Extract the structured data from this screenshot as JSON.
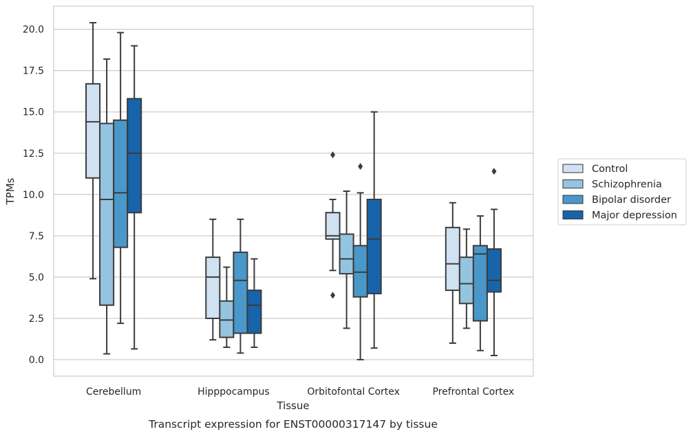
{
  "chart_data": {
    "type": "box",
    "xlabel": "Tissue",
    "ylabel": "TPMs",
    "caption": "Transcript expression for ENST00000317147 by tissue",
    "ylim": [
      -1.0,
      21.4
    ],
    "yticks": [
      "0.0",
      "2.5",
      "5.0",
      "7.5",
      "10.0",
      "12.5",
      "15.0",
      "17.5",
      "20.0"
    ],
    "grid": true,
    "legend_position": "right",
    "categories": [
      "Cerebellum",
      "Hipppocampus",
      "Orbitofontal Cortex",
      "Prefrontal Cortex"
    ],
    "series": [
      {
        "name": "Control",
        "color": "#d0e1f2",
        "boxes": [
          {
            "whislo": 4.9,
            "q1": 11.0,
            "med": 14.4,
            "q3": 16.7,
            "whishi": 20.4,
            "fliers": []
          },
          {
            "whislo": 1.2,
            "q1": 2.5,
            "med": 5.0,
            "q3": 6.2,
            "whishi": 8.5,
            "fliers": []
          },
          {
            "whislo": 5.4,
            "q1": 7.3,
            "med": 7.5,
            "q3": 8.9,
            "whishi": 9.7,
            "fliers": [
              12.4,
              3.9
            ]
          },
          {
            "whislo": 1.0,
            "q1": 4.2,
            "med": 5.8,
            "q3": 8.0,
            "whishi": 9.5,
            "fliers": []
          }
        ]
      },
      {
        "name": "Schizophrenia",
        "color": "#94c4df",
        "boxes": [
          {
            "whislo": 0.35,
            "q1": 3.3,
            "med": 9.7,
            "q3": 14.3,
            "whishi": 18.2,
            "fliers": []
          },
          {
            "whislo": 0.75,
            "q1": 1.35,
            "med": 2.4,
            "q3": 3.55,
            "whishi": 5.6,
            "fliers": []
          },
          {
            "whislo": 1.9,
            "q1": 5.2,
            "med": 6.1,
            "q3": 7.6,
            "whishi": 10.2,
            "fliers": []
          },
          {
            "whislo": 1.9,
            "q1": 3.4,
            "med": 4.6,
            "q3": 6.2,
            "whishi": 7.9,
            "fliers": []
          }
        ]
      },
      {
        "name": "Bipolar disorder",
        "color": "#4a98c9",
        "boxes": [
          {
            "whislo": 2.2,
            "q1": 6.8,
            "med": 10.1,
            "q3": 14.5,
            "whishi": 19.8,
            "fliers": []
          },
          {
            "whislo": 0.4,
            "q1": 1.6,
            "med": 4.8,
            "q3": 6.5,
            "whishi": 8.5,
            "fliers": []
          },
          {
            "whislo": 0.0,
            "q1": 3.8,
            "med": 5.3,
            "q3": 6.9,
            "whishi": 10.1,
            "fliers": [
              11.7
            ]
          },
          {
            "whislo": 0.55,
            "q1": 2.35,
            "med": 6.4,
            "q3": 6.9,
            "whishi": 8.7,
            "fliers": []
          }
        ]
      },
      {
        "name": "Major depression",
        "color": "#1764ab",
        "boxes": [
          {
            "whislo": 0.65,
            "q1": 8.9,
            "med": 12.5,
            "q3": 15.8,
            "whishi": 19.0,
            "fliers": []
          },
          {
            "whislo": 0.75,
            "q1": 1.6,
            "med": 3.3,
            "q3": 4.2,
            "whishi": 6.1,
            "fliers": []
          },
          {
            "whislo": 0.7,
            "q1": 4.0,
            "med": 7.3,
            "q3": 9.7,
            "whishi": 15.0,
            "fliers": []
          },
          {
            "whislo": 0.25,
            "q1": 4.1,
            "med": 4.8,
            "q3": 6.7,
            "whishi": 9.1,
            "fliers": [
              11.4
            ]
          }
        ]
      }
    ]
  }
}
